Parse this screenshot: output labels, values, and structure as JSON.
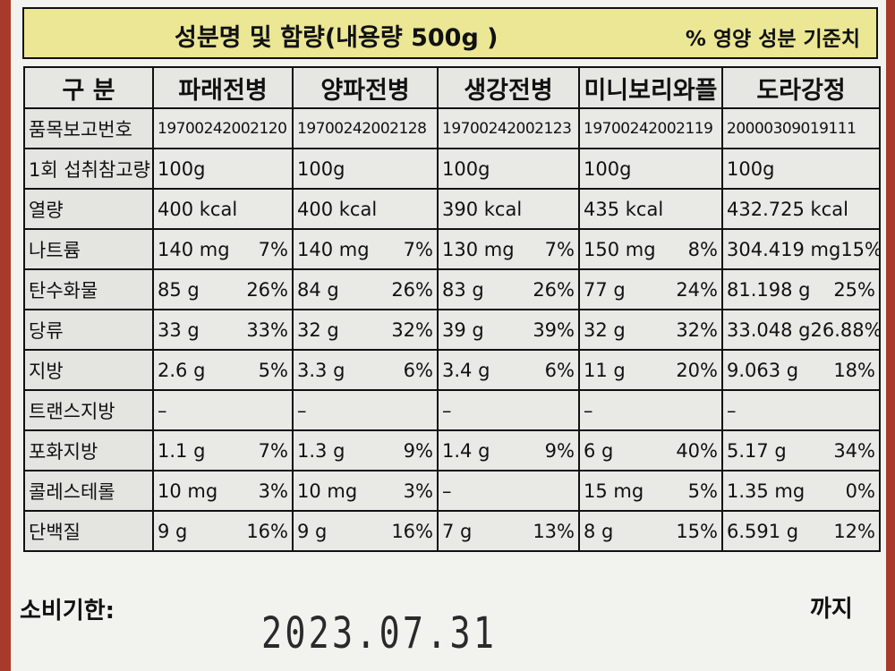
{
  "header": {
    "title": "성분명 및 함량(내용량 500g )",
    "note": "% 영양 성분 기준치"
  },
  "table": {
    "corner": "구 분",
    "columns": [
      "파래전병",
      "양파전병",
      "생강전병",
      "미니보리와플",
      "도라강정"
    ],
    "rows": [
      {
        "label": "품목보고번호",
        "cells": [
          [
            "19700242002120"
          ],
          [
            "19700242002128"
          ],
          [
            "19700242002123"
          ],
          [
            "19700242002119"
          ],
          [
            "20000309019111"
          ]
        ]
      },
      {
        "label": "1회 섭취참고량",
        "cells": [
          [
            "100g"
          ],
          [
            "100g"
          ],
          [
            "100g"
          ],
          [
            "100g"
          ],
          [
            "100g"
          ]
        ]
      },
      {
        "label": "열량",
        "cells": [
          [
            "400 kcal"
          ],
          [
            "400 kcal"
          ],
          [
            "390 kcal"
          ],
          [
            "435 kcal"
          ],
          [
            "432.725 kcal"
          ]
        ]
      },
      {
        "label": "나트륨",
        "cells": [
          [
            "140 mg",
            "7%"
          ],
          [
            "140 mg",
            "7%"
          ],
          [
            "130 mg",
            "7%"
          ],
          [
            "150 mg",
            "8%"
          ],
          [
            "304.419 mg",
            "15%"
          ]
        ]
      },
      {
        "label": "탄수화물",
        "cells": [
          [
            "85 g",
            "26%"
          ],
          [
            "84 g",
            "26%"
          ],
          [
            "83 g",
            "26%"
          ],
          [
            "77 g",
            "24%"
          ],
          [
            "81.198 g",
            "25%"
          ]
        ]
      },
      {
        "label": "당류",
        "cells": [
          [
            "33 g",
            "33%"
          ],
          [
            "32 g",
            "32%"
          ],
          [
            "39 g",
            "39%"
          ],
          [
            "32 g",
            "32%"
          ],
          [
            "33.048 g",
            "26.88%"
          ]
        ]
      },
      {
        "label": "지방",
        "cells": [
          [
            "2.6 g",
            "5%"
          ],
          [
            "3.3 g",
            "6%"
          ],
          [
            "3.4 g",
            "6%"
          ],
          [
            "11 g",
            "20%"
          ],
          [
            "9.063 g",
            "18%"
          ]
        ]
      },
      {
        "label": "트랜스지방",
        "cells": [
          [
            "–"
          ],
          [
            "–"
          ],
          [
            "–"
          ],
          [
            "–"
          ],
          [
            "–"
          ]
        ]
      },
      {
        "label": "포화지방",
        "cells": [
          [
            "1.1 g",
            "7%"
          ],
          [
            "1.3 g",
            "9%"
          ],
          [
            "1.4 g",
            "9%"
          ],
          [
            "6 g",
            "40%"
          ],
          [
            "5.17 g",
            "34%"
          ]
        ]
      },
      {
        "label": "콜레스테롤",
        "cells": [
          [
            "10 mg",
            "3%"
          ],
          [
            "10 mg",
            "3%"
          ],
          [
            "–"
          ],
          [
            "15 mg",
            "5%"
          ],
          [
            "1.35 mg",
            "0%"
          ]
        ]
      },
      {
        "label": "단백질",
        "cells": [
          [
            "9 g",
            "16%"
          ],
          [
            "9 g",
            "16%"
          ],
          [
            "7 g",
            "13%"
          ],
          [
            "8 g",
            "15%"
          ],
          [
            "6.591 g",
            "12%"
          ]
        ]
      }
    ]
  },
  "footer": {
    "label": "소비기한:",
    "suffix": "까지",
    "date": "2023.07.31"
  }
}
